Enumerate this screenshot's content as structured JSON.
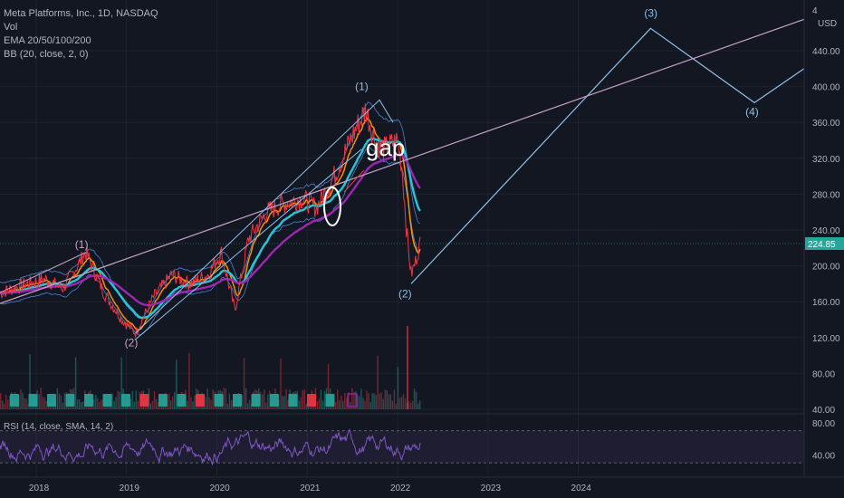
{
  "legend": {
    "title": "Meta Platforms, Inc., 1D, NASDAQ",
    "vol": "Vol",
    "ema": "EMA 20/50/100/200",
    "bb": "BB (20, close, 2, 0)"
  },
  "rsi_legend": "RSI (14, close, SMA, 14, 2)",
  "currency": "USD",
  "currency_4": "4",
  "price_tag": "224.85",
  "annotation_gap": "gap",
  "colors": {
    "background": "#131722",
    "price": "#f23645",
    "ema_fast": "#ff9800",
    "ema_mid": "#26c6da",
    "ema_slow": "#9c27b0",
    "bb": "#5b9cf6",
    "wave": "#90bfe8",
    "trend": "#c8a2c8",
    "rsi": "#7e57c2"
  },
  "chart_data": {
    "type": "line",
    "title": "Meta Platforms, Inc., 1D, NASDAQ",
    "x_tick_labels": [
      "2018",
      "2019",
      "2020",
      "2021",
      "2022",
      "2023",
      "2024"
    ],
    "y_tick_labels": [
      "40.00",
      "80.00",
      "120.00",
      "160.00",
      "200.00",
      "240.00",
      "280.00",
      "320.00",
      "360.00",
      "400.00",
      "440.00"
    ],
    "ylim": [
      30,
      480
    ],
    "last_price": 224.85,
    "price_series": {
      "x": [
        2017.6,
        2017.9,
        2018.1,
        2018.3,
        2018.55,
        2018.75,
        2018.95,
        2019.1,
        2019.3,
        2019.5,
        2019.7,
        2019.9,
        2020.05,
        2020.2,
        2020.35,
        2020.55,
        2020.75,
        2020.95,
        2021.1,
        2021.3,
        2021.5,
        2021.65,
        2021.75,
        2021.85,
        2022.0,
        2022.05,
        2022.1,
        2022.15,
        2022.2,
        2022.25
      ],
      "y": [
        170,
        180,
        185,
        175,
        215,
        170,
        140,
        125,
        165,
        190,
        180,
        190,
        215,
        150,
        230,
        260,
        270,
        275,
        265,
        300,
        345,
        375,
        340,
        330,
        340,
        310,
        240,
        190,
        205,
        225
      ]
    },
    "volume_earnings_markers": 18,
    "wave_labels": [
      "(1)",
      "(2)",
      "(1)",
      "(2)",
      "(3)",
      "(4)"
    ],
    "elliott_wave": {
      "x": [
        2022.15,
        2024.8,
        2025.95,
        2026.5
      ],
      "y": [
        180,
        465,
        382,
        420
      ]
    },
    "trendline": {
      "x": [
        2017.6,
        2026.5
      ],
      "y": [
        158,
        475
      ]
    },
    "rsi": {
      "y_tick_labels": [
        "80.00",
        "40.00"
      ],
      "ylim": [
        20,
        90
      ]
    }
  }
}
